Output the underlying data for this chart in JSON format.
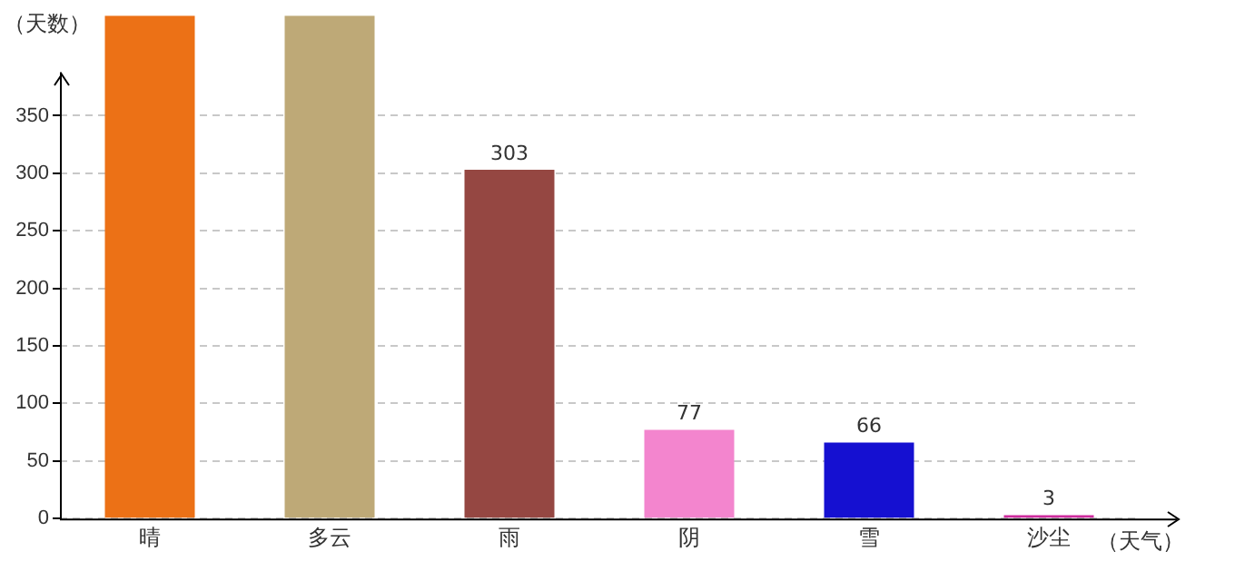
{
  "chart_data": {
    "type": "bar",
    "ylabel": "（天数）",
    "xlabel": "（天气）",
    "categories": [
      "晴",
      "多云",
      "雨",
      "阴",
      "雪",
      "沙尘"
    ],
    "values": [
      437,
      437,
      303,
      77,
      66,
      3
    ],
    "value_labels": [
      null,
      null,
      "303",
      "77",
      "66",
      "3"
    ],
    "colors": [
      "#ec7116",
      "#bea977",
      "#954742",
      "#f385ce",
      "#1510d1",
      "#cd2b9d"
    ],
    "ylim": [
      0,
      437
    ],
    "yticks": [
      0,
      50,
      100,
      150,
      200,
      250,
      300,
      350
    ],
    "grid": "y",
    "legend": false
  }
}
